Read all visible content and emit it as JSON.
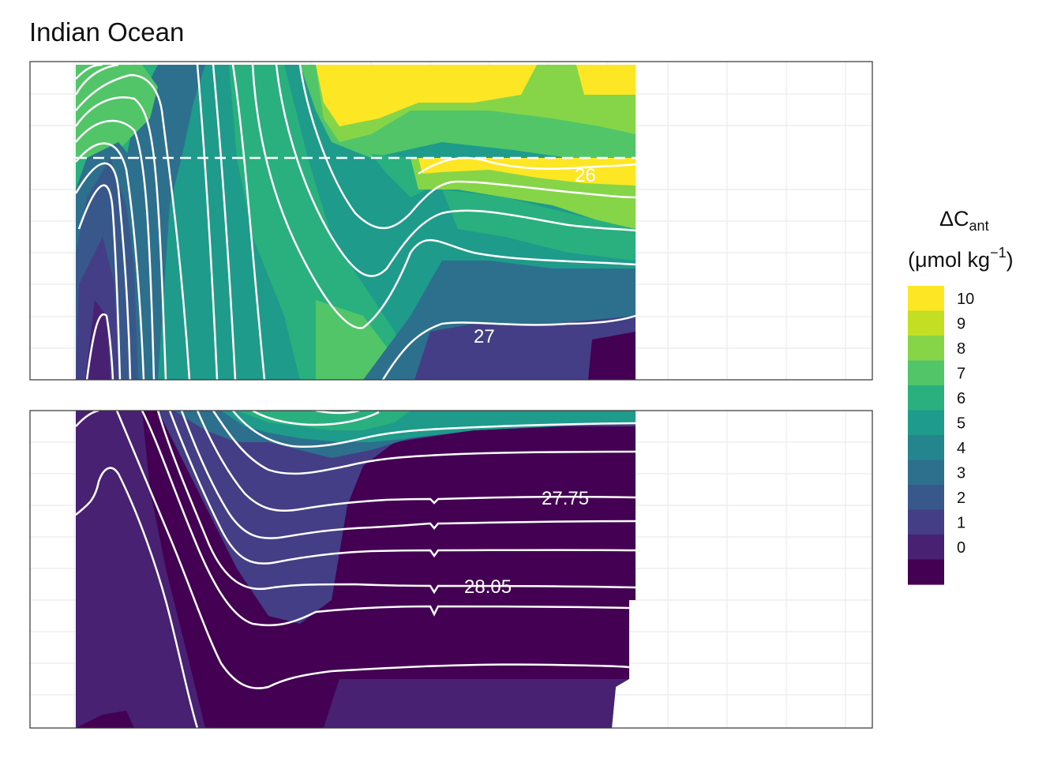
{
  "title": "Indian Ocean",
  "chart_data": {
    "type": "heatmap",
    "title": "Indian Ocean",
    "xlabel": "",
    "ylabel": "",
    "panels": [
      {
        "name": "upper",
        "contour_labels": [
          "26",
          "27"
        ],
        "has_dashed_reference_line": true
      },
      {
        "name": "lower",
        "contour_labels": [
          "27.75",
          "28.05"
        ],
        "has_dashed_reference_line": false
      }
    ],
    "legend": {
      "title_main": "ΔC",
      "title_sub": "ant",
      "unit_main": "(μmol kg",
      "unit_sup": "−1",
      "unit_close": ")",
      "placement": "right",
      "breaks": [
        "10",
        "9",
        "8",
        "7",
        "6",
        "5",
        "4",
        "3",
        "2",
        "1",
        "0"
      ],
      "colors": [
        "#fde725",
        "#c2df23",
        "#86d549",
        "#52c569",
        "#2ab07f",
        "#1e9b8a",
        "#25858e",
        "#2d708e",
        "#38588c",
        "#433e85",
        "#482173",
        "#440154"
      ]
    },
    "grid": true
  }
}
